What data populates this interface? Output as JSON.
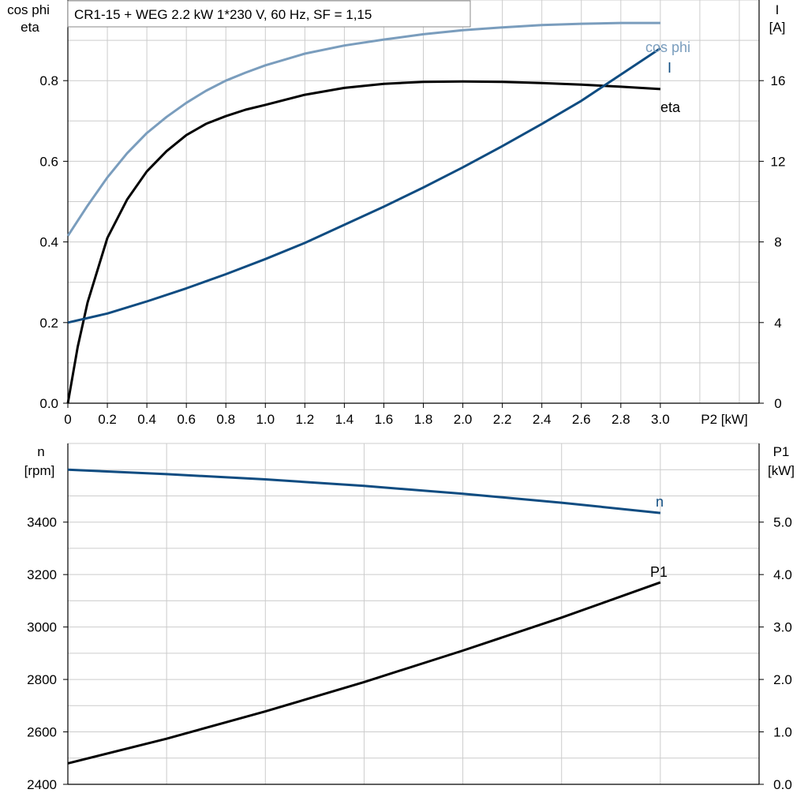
{
  "title": "CR1-15 + WEG   2.2 kW   1*230 V, 60 Hz, SF = 1,15",
  "colors": {
    "cos_phi": "#7a9dbd",
    "current": "#0f4c81",
    "eta": "#000000",
    "speed": "#0f4c81",
    "p1": "#000000",
    "grid": "#cccccc"
  },
  "chart_data": [
    {
      "type": "line",
      "title": "CR1-15 + WEG   2.2 kW   1*230 V, 60 Hz, SF = 1,15",
      "xlabel": "P2 [kW]",
      "xlim": [
        0,
        3.5
      ],
      "x_ticks": [
        "0",
        "0.2",
        "0.4",
        "0.6",
        "0.8",
        "1.0",
        "1.2",
        "1.4",
        "1.6",
        "1.8",
        "2.0",
        "2.2",
        "2.4",
        "2.6",
        "2.8",
        "3.0"
      ],
      "ylabel_left": [
        "cos phi",
        "eta"
      ],
      "ylim_left": [
        0,
        1.0
      ],
      "y_ticks_left": [
        "0.0",
        "0.2",
        "0.4",
        "0.6",
        "0.8"
      ],
      "ylabel_right": [
        "I",
        "[A]"
      ],
      "ylim_right": [
        0,
        20
      ],
      "y_ticks_right": [
        "0",
        "4",
        "8",
        "12",
        "16"
      ],
      "grid": true,
      "series": [
        {
          "name": "cos phi",
          "axis": "left",
          "x": [
            0,
            0.1,
            0.2,
            0.3,
            0.4,
            0.5,
            0.6,
            0.7,
            0.8,
            0.9,
            1.0,
            1.2,
            1.4,
            1.6,
            1.8,
            2.0,
            2.2,
            2.4,
            2.6,
            2.8,
            3.0
          ],
          "y": [
            0.415,
            0.49,
            0.56,
            0.62,
            0.67,
            0.71,
            0.745,
            0.775,
            0.8,
            0.82,
            0.838,
            0.867,
            0.887,
            0.902,
            0.915,
            0.925,
            0.932,
            0.938,
            0.941,
            0.943,
            0.943
          ]
        },
        {
          "name": "eta",
          "axis": "left",
          "x": [
            0,
            0.05,
            0.1,
            0.2,
            0.3,
            0.4,
            0.5,
            0.6,
            0.7,
            0.8,
            0.9,
            1.0,
            1.2,
            1.4,
            1.6,
            1.8,
            2.0,
            2.2,
            2.4,
            2.6,
            2.8,
            3.0
          ],
          "y": [
            0.0,
            0.14,
            0.25,
            0.41,
            0.505,
            0.575,
            0.625,
            0.665,
            0.693,
            0.712,
            0.728,
            0.74,
            0.765,
            0.782,
            0.792,
            0.797,
            0.798,
            0.797,
            0.794,
            0.79,
            0.785,
            0.779
          ]
        },
        {
          "name": "I",
          "axis": "right",
          "x": [
            0,
            0.2,
            0.4,
            0.6,
            0.8,
            1.0,
            1.2,
            1.4,
            1.6,
            1.8,
            2.0,
            2.2,
            2.4,
            2.6,
            2.8,
            3.0
          ],
          "y": [
            4.0,
            4.45,
            5.05,
            5.7,
            6.4,
            7.15,
            7.95,
            8.85,
            9.75,
            10.7,
            11.7,
            12.75,
            13.85,
            15.0,
            16.3,
            17.6
          ]
        }
      ],
      "annotations": [
        "cos phi",
        "I",
        "eta"
      ]
    },
    {
      "type": "line",
      "xlim": [
        0,
        3.5
      ],
      "ylabel_left": [
        "n",
        "[rpm]"
      ],
      "ylim_left": [
        2400,
        3700
      ],
      "y_ticks_left": [
        "2400",
        "2600",
        "2800",
        "3000",
        "3200",
        "3400"
      ],
      "ylabel_right": [
        "P1",
        "[kW]"
      ],
      "ylim_right": [
        0,
        6.5
      ],
      "y_ticks_right": [
        "0.0",
        "1.0",
        "2.0",
        "3.0",
        "4.0",
        "5.0"
      ],
      "grid": true,
      "series": [
        {
          "name": "n",
          "axis": "left",
          "x": [
            0,
            0.5,
            1.0,
            1.5,
            2.0,
            2.5,
            3.0
          ],
          "y": [
            3600,
            3583,
            3563,
            3538,
            3508,
            3474,
            3435
          ]
        },
        {
          "name": "P1",
          "axis": "right",
          "x": [
            0,
            0.5,
            1.0,
            1.5,
            2.0,
            2.5,
            3.0
          ],
          "y": [
            0.4,
            0.87,
            1.39,
            1.95,
            2.55,
            3.18,
            3.85
          ]
        }
      ],
      "annotations": [
        "n",
        "P1"
      ]
    }
  ]
}
